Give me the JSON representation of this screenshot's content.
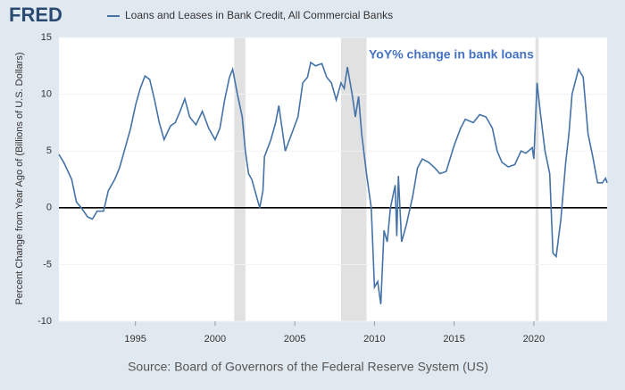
{
  "logo": "FRED",
  "chart_data": {
    "type": "line",
    "y_label": "Percent Change from Year Ago of (Billions of U.S. Dollars)",
    "annotation": "YoY% change in bank loans",
    "source": "Source: Board of Governors of the Federal Reserve System (US)",
    "xlim": [
      1990.2,
      2024.6
    ],
    "xticks": [
      1995,
      2000,
      2005,
      2010,
      2015,
      2020
    ],
    "ylim": [
      -10,
      15
    ],
    "yticks": [
      -10,
      -5,
      0,
      5,
      10,
      15
    ],
    "grid": true,
    "hline": 0,
    "recessions": [
      [
        2001.2,
        2001.9
      ],
      [
        2007.9,
        2009.5
      ],
      [
        2020.1,
        2020.3
      ]
    ],
    "x": [
      1990.2,
      1990.5,
      1991.0,
      1991.3,
      1991.6,
      1992.0,
      1992.3,
      1992.6,
      1993.0,
      1993.3,
      1993.7,
      1994.0,
      1994.3,
      1994.7,
      1995.0,
      1995.3,
      1995.6,
      1995.9,
      1996.2,
      1996.5,
      1996.8,
      1997.2,
      1997.5,
      1997.8,
      1998.1,
      1998.4,
      1998.8,
      1999.2,
      1999.6,
      2000.0,
      2000.3,
      2000.6,
      2000.9,
      2001.1,
      2001.4,
      2001.7,
      2001.9,
      2002.1,
      2002.3,
      2002.6,
      2002.8,
      2003.0,
      2003.1,
      2003.5,
      2003.8,
      2004.0,
      2004.2,
      2004.4,
      2004.8,
      2005.2,
      2005.5,
      2005.8,
      2006.0,
      2006.3,
      2006.7,
      2007.0,
      2007.3,
      2007.6,
      2007.9,
      2008.1,
      2008.3,
      2008.6,
      2008.8,
      2009.0,
      2009.2,
      2009.5,
      2009.8,
      2010.0,
      2010.2,
      2010.4,
      2010.6,
      2010.8,
      2011.0,
      2011.3,
      2011.4,
      2011.5,
      2011.7,
      2012.0,
      2012.4,
      2012.7,
      2013.0,
      2013.4,
      2013.8,
      2014.1,
      2014.5,
      2015.0,
      2015.4,
      2015.7,
      2016.2,
      2016.6,
      2017.0,
      2017.4,
      2017.7,
      2018.0,
      2018.4,
      2018.8,
      2019.2,
      2019.5,
      2019.9,
      2020.0,
      2020.2,
      2020.4,
      2020.7,
      2021.0,
      2021.2,
      2021.4,
      2021.7,
      2022.0,
      2022.2,
      2022.4,
      2022.8,
      2023.1,
      2023.4,
      2023.7,
      2024.0,
      2024.3,
      2024.5,
      2024.6
    ],
    "series": [
      {
        "name": "Loans and Leases in Bank Credit, All Commercial Banks",
        "color": "#4572a7",
        "values": [
          4.7,
          4.0,
          2.5,
          0.5,
          0,
          -0.8,
          -1.0,
          -0.3,
          -0.3,
          1.5,
          2.5,
          3.5,
          5.0,
          7.0,
          9.0,
          10.5,
          11.6,
          11.3,
          9.5,
          7.5,
          6.0,
          7.2,
          7.5,
          8.5,
          9.6,
          8.0,
          7.3,
          8.5,
          7.0,
          6.0,
          7.0,
          9.5,
          11.5,
          12.2,
          10.0,
          8.0,
          5.0,
          3.0,
          2.5,
          1.0,
          0,
          1.5,
          4.5,
          6.0,
          7.5,
          9.0,
          7.0,
          5.0,
          6.5,
          8.0,
          11.0,
          11.5,
          12.8,
          12.5,
          12.7,
          11.5,
          11.0,
          9.5,
          11.0,
          10.5,
          12.4,
          10.0,
          8.0,
          9.8,
          6.5,
          3.0,
          0,
          -7,
          -6.5,
          -8.5,
          -2.0,
          -3.0,
          0,
          2.0,
          -2.5,
          2.8,
          -3.0,
          -1.5,
          1.0,
          3.5,
          4.3,
          4.0,
          3.5,
          3.0,
          3.2,
          5.5,
          7.0,
          7.8,
          7.5,
          8.2,
          8.0,
          7.0,
          5.0,
          4.0,
          3.6,
          3.8,
          5.0,
          4.8,
          5.3,
          4.3,
          11.0,
          8.5,
          5.0,
          3.0,
          -4.0,
          -4.3,
          -1.0,
          4.0,
          6.5,
          10.0,
          12.2,
          11.5,
          6.5,
          4.5,
          2.2,
          2.2,
          2.6,
          2.2
        ]
      }
    ]
  }
}
